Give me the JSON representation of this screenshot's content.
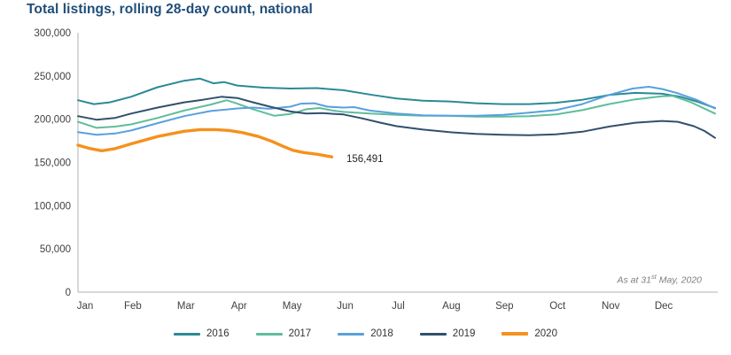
{
  "chart_data": {
    "type": "line",
    "title": "Total listings, rolling 28-day count, national",
    "xlabel": "",
    "ylabel": "",
    "ylim": [
      0,
      300000
    ],
    "grid": false,
    "legend_position": "bottom",
    "x_scale_note": "x in months, 0=start Jan, 12=end Dec",
    "yticks": [
      {
        "value": 300000,
        "label": "300,000"
      },
      {
        "value": 250000,
        "label": "250,000"
      },
      {
        "value": 200000,
        "label": "200,000"
      },
      {
        "value": 150000,
        "label": "150,000"
      },
      {
        "value": 100000,
        "label": "100,000"
      },
      {
        "value": 50000,
        "label": "50,000"
      },
      {
        "value": 0,
        "label": "0"
      }
    ],
    "xticks": [
      "Jan",
      "Feb",
      "Mar",
      "Apr",
      "May",
      "Jun",
      "Jul",
      "Aug",
      "Sep",
      "Oct",
      "Nov",
      "Dec"
    ],
    "series": [
      {
        "name": "2016",
        "color": "#2b8a96",
        "line_width": 2,
        "points": [
          [
            0,
            222000
          ],
          [
            0.3,
            217500
          ],
          [
            0.6,
            219500
          ],
          [
            1,
            226000
          ],
          [
            1.5,
            237000
          ],
          [
            2,
            244500
          ],
          [
            2.3,
            247000
          ],
          [
            2.55,
            241500
          ],
          [
            2.75,
            243000
          ],
          [
            3,
            239000
          ],
          [
            3.5,
            236500
          ],
          [
            4,
            235500
          ],
          [
            4.5,
            236000
          ],
          [
            5,
            233500
          ],
          [
            5.5,
            228500
          ],
          [
            6,
            224000
          ],
          [
            6.5,
            221500
          ],
          [
            7,
            220500
          ],
          [
            7.5,
            218500
          ],
          [
            8,
            217500
          ],
          [
            8.5,
            217500
          ],
          [
            9,
            219000
          ],
          [
            9.5,
            222500
          ],
          [
            10,
            228000
          ],
          [
            10.5,
            230500
          ],
          [
            11,
            229500
          ],
          [
            11.35,
            226000
          ],
          [
            11.7,
            219500
          ],
          [
            12,
            213000
          ]
        ]
      },
      {
        "name": "2017",
        "color": "#5fbd9a",
        "line_width": 2,
        "points": [
          [
            0,
            197000
          ],
          [
            0.35,
            190000
          ],
          [
            0.7,
            191500
          ],
          [
            1,
            194000
          ],
          [
            1.5,
            201500
          ],
          [
            2,
            210000
          ],
          [
            2.5,
            217000
          ],
          [
            2.8,
            222000
          ],
          [
            3,
            218000
          ],
          [
            3.3,
            211500
          ],
          [
            3.7,
            204000
          ],
          [
            4,
            206000
          ],
          [
            4.3,
            211500
          ],
          [
            4.55,
            213000
          ],
          [
            4.8,
            210000
          ],
          [
            5,
            208500
          ],
          [
            5.5,
            206500
          ],
          [
            6,
            205000
          ],
          [
            6.5,
            204000
          ],
          [
            7,
            204000
          ],
          [
            7.5,
            203000
          ],
          [
            8,
            203000
          ],
          [
            8.5,
            203500
          ],
          [
            9,
            205500
          ],
          [
            9.5,
            210500
          ],
          [
            10,
            217500
          ],
          [
            10.5,
            223000
          ],
          [
            11,
            226500
          ],
          [
            11.2,
            227000
          ],
          [
            11.55,
            219500
          ],
          [
            12,
            206500
          ]
        ]
      },
      {
        "name": "2018",
        "color": "#58a1de",
        "line_width": 2,
        "points": [
          [
            0,
            185000
          ],
          [
            0.35,
            182000
          ],
          [
            0.7,
            183500
          ],
          [
            1,
            187000
          ],
          [
            1.5,
            195500
          ],
          [
            2,
            203500
          ],
          [
            2.5,
            209500
          ],
          [
            3,
            212500
          ],
          [
            3.3,
            213500
          ],
          [
            3.6,
            212000
          ],
          [
            4,
            214500
          ],
          [
            4.2,
            218000
          ],
          [
            4.45,
            218500
          ],
          [
            4.7,
            214500
          ],
          [
            5,
            213500
          ],
          [
            5.2,
            214000
          ],
          [
            5.5,
            210000
          ],
          [
            6,
            206500
          ],
          [
            6.5,
            204500
          ],
          [
            7,
            204000
          ],
          [
            7.5,
            204000
          ],
          [
            8,
            205000
          ],
          [
            8.5,
            207500
          ],
          [
            9,
            210500
          ],
          [
            9.5,
            217500
          ],
          [
            10,
            228000
          ],
          [
            10.45,
            235500
          ],
          [
            10.75,
            237500
          ],
          [
            11,
            235000
          ],
          [
            11.3,
            230000
          ],
          [
            11.65,
            222500
          ],
          [
            12,
            212500
          ]
        ]
      },
      {
        "name": "2019",
        "color": "#32506e",
        "line_width": 2,
        "points": [
          [
            0,
            203500
          ],
          [
            0.35,
            199500
          ],
          [
            0.7,
            201500
          ],
          [
            1,
            206500
          ],
          [
            1.5,
            213500
          ],
          [
            2,
            219500
          ],
          [
            2.35,
            222500
          ],
          [
            2.7,
            226000
          ],
          [
            3,
            224500
          ],
          [
            3.3,
            219500
          ],
          [
            3.65,
            214000
          ],
          [
            4,
            209000
          ],
          [
            4.3,
            206500
          ],
          [
            4.6,
            207000
          ],
          [
            5,
            205500
          ],
          [
            5.35,
            201000
          ],
          [
            5.7,
            196000
          ],
          [
            6,
            192000
          ],
          [
            6.5,
            188000
          ],
          [
            7,
            185000
          ],
          [
            7.5,
            183000
          ],
          [
            8,
            182000
          ],
          [
            8.5,
            181500
          ],
          [
            9,
            182500
          ],
          [
            9.5,
            185500
          ],
          [
            10,
            191500
          ],
          [
            10.5,
            196000
          ],
          [
            11,
            198000
          ],
          [
            11.3,
            197000
          ],
          [
            11.6,
            192000
          ],
          [
            11.8,
            186500
          ],
          [
            12,
            178500
          ]
        ]
      },
      {
        "name": "2020",
        "color": "#f5911e",
        "line_width": 3.4,
        "points": [
          [
            0,
            170000
          ],
          [
            0.2,
            166500
          ],
          [
            0.45,
            163500
          ],
          [
            0.7,
            166000
          ],
          [
            1,
            171500
          ],
          [
            1.5,
            180000
          ],
          [
            2,
            186000
          ],
          [
            2.3,
            188000
          ],
          [
            2.6,
            188000
          ],
          [
            2.85,
            187000
          ],
          [
            3.1,
            184500
          ],
          [
            3.4,
            180000
          ],
          [
            3.65,
            174500
          ],
          [
            3.85,
            169000
          ],
          [
            4.05,
            164000
          ],
          [
            4.25,
            161500
          ],
          [
            4.5,
            159500
          ],
          [
            4.78,
            156491
          ]
        ]
      }
    ],
    "annotations": {
      "last_value": "156,491",
      "as_of_prefix": "As at 31",
      "as_of_sup": "st",
      "as_of_suffix": " May, 2020"
    }
  },
  "colors": {
    "title": "#1f4e79",
    "axis_line": "#b0b0b0",
    "tick_text": "#3f3f3f",
    "note_text": "#7f7f7f"
  }
}
